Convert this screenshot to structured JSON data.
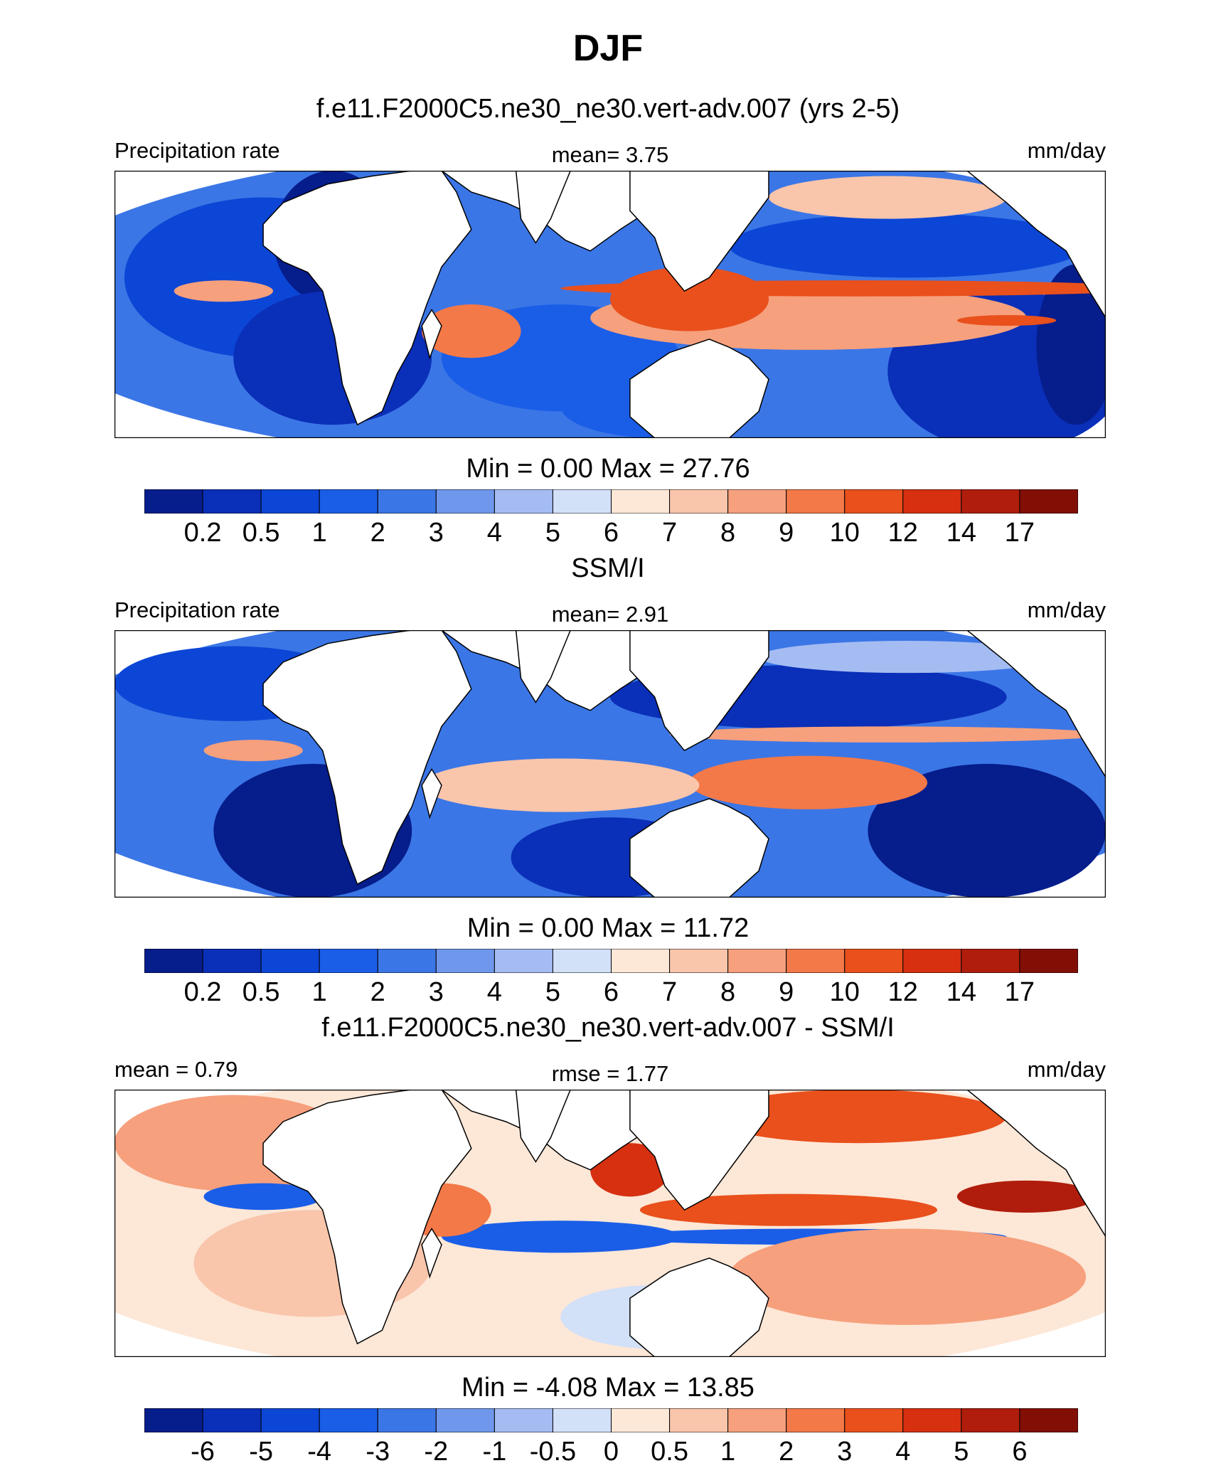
{
  "title": "DJF",
  "chart_data": [
    {
      "type": "heatmap",
      "title": "f.e11.F2000C5.ne30_ne30.vert-adv.007 (yrs 2-5)",
      "left_label": "Precipitation rate",
      "center_label": "mean=   3.75",
      "units": "mm/day",
      "stats": "Min =    0.00 Max =  27.76",
      "min": 0.0,
      "max": 27.76,
      "mean": 3.75,
      "colorbar_ticks": [
        "0.2",
        "0.5",
        "1",
        "2",
        "3",
        "4",
        "5",
        "6",
        "7",
        "8",
        "9",
        "10",
        "12",
        "14",
        "17"
      ]
    },
    {
      "type": "heatmap",
      "title": "SSM/I",
      "left_label": "Precipitation rate",
      "center_label": "mean=   2.91",
      "units": "mm/day",
      "stats": "Min =    0.00 Max =  11.72",
      "min": 0.0,
      "max": 11.72,
      "mean": 2.91,
      "colorbar_ticks": [
        "0.2",
        "0.5",
        "1",
        "2",
        "3",
        "4",
        "5",
        "6",
        "7",
        "8",
        "9",
        "10",
        "12",
        "14",
        "17"
      ]
    },
    {
      "type": "heatmap",
      "title": "f.e11.F2000C5.ne30_ne30.vert-adv.007 - SSM/I",
      "left_label": "mean =   0.79",
      "center_label": "rmse =   1.77",
      "units": "mm/day",
      "stats": "Min =  -4.08 Max =  13.85",
      "min": -4.08,
      "max": 13.85,
      "mean": 0.79,
      "rmse": 1.77,
      "colorbar_ticks": [
        "-6",
        "-5",
        "-4",
        "-3",
        "-2",
        "-1",
        "-0.5",
        "0",
        "0.5",
        "1",
        "2",
        "3",
        "4",
        "5",
        "6"
      ]
    }
  ],
  "colors": {
    "palette": [
      "#061d8c",
      "#0a2fb8",
      "#0c46d6",
      "#1a5ee8",
      "#3b76e6",
      "#6f98ec",
      "#a4bcf2",
      "#d2e0f8",
      "#fde7d7",
      "#f9c5ab",
      "#f6a07d",
      "#f37948",
      "#e9501c",
      "#d63010",
      "#b01d0c",
      "#820f06"
    ],
    "land": "#ffffff",
    "coast": "#000000"
  }
}
